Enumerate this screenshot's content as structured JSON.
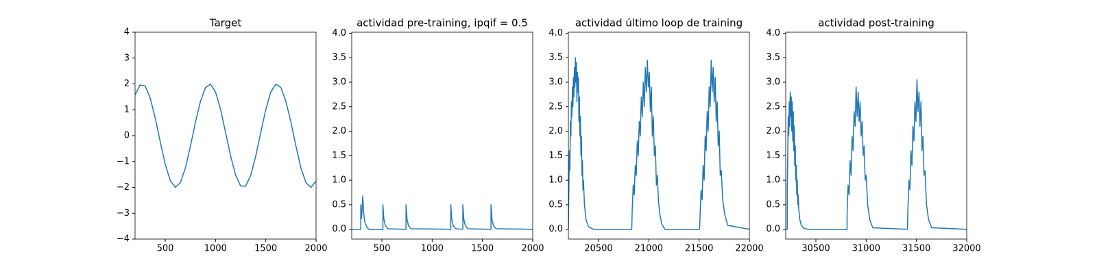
{
  "chart_data": [
    {
      "type": "line",
      "title": "Target",
      "color": "#1f77b4",
      "x": [
        200,
        250,
        300,
        350,
        400,
        450,
        500,
        550,
        600,
        650,
        700,
        750,
        800,
        850,
        900,
        950,
        1000,
        1050,
        1100,
        1150,
        1200,
        1250,
        1300,
        1350,
        1400,
        1450,
        1500,
        1550,
        1600,
        1650,
        1700,
        1750,
        1800,
        1850,
        1900,
        1950,
        2000
      ],
      "values": [
        1.58,
        1.96,
        1.92,
        1.46,
        0.69,
        -0.23,
        -1.11,
        -1.74,
        -2.0,
        -1.82,
        -1.26,
        -0.42,
        0.51,
        1.32,
        1.86,
        1.99,
        1.69,
        1.02,
        0.12,
        -0.78,
        -1.53,
        -1.95,
        -1.95,
        -1.54,
        -0.79,
        0.12,
        1.01,
        1.69,
        1.99,
        1.86,
        1.32,
        0.52,
        -0.41,
        -1.26,
        -1.82,
        -2.0,
        -1.75
      ],
      "xlim": [
        200,
        2000
      ],
      "xticks": [
        500,
        1000,
        1500,
        2000
      ],
      "ylim": [
        -4,
        4
      ],
      "yticks": [
        {
          "value": -4,
          "label": "−4"
        },
        {
          "value": -3,
          "label": "−3"
        },
        {
          "value": -2,
          "label": "−2"
        },
        {
          "value": -1,
          "label": "−1"
        },
        0,
        1,
        2,
        3,
        4
      ]
    },
    {
      "type": "line",
      "title": "actividad pre-training, ipqif = 0.5",
      "color": "#1f77b4",
      "x": [
        200,
        290,
        290,
        298,
        310,
        318,
        330,
        350,
        370,
        510,
        510,
        520,
        535,
        560,
        740,
        740,
        750,
        765,
        790,
        1185,
        1185,
        1195,
        1210,
        1235,
        1305,
        1305,
        1315,
        1330,
        1355,
        1585,
        1585,
        1595,
        1610,
        1635,
        2000
      ],
      "values": [
        0,
        0,
        0.5,
        0.22,
        0.68,
        0.35,
        0.15,
        0.04,
        0,
        0,
        0.5,
        0.2,
        0.07,
        0.01,
        0,
        0.5,
        0.2,
        0.07,
        0.01,
        0,
        0.5,
        0.2,
        0.07,
        0.01,
        0,
        0.5,
        0.2,
        0.07,
        0.01,
        0,
        0.5,
        0.2,
        0.07,
        0.01,
        0
      ],
      "xlim": [
        200,
        2000
      ],
      "xticks": [
        500,
        1000,
        1500,
        2000
      ],
      "ylim": [
        -0.2,
        4.02
      ],
      "yticks": [
        {
          "value": 0,
          "label": "0.0"
        },
        {
          "value": 0.5,
          "label": "0.5"
        },
        {
          "value": 1,
          "label": "1.0"
        },
        {
          "value": 1.5,
          "label": "1.5"
        },
        {
          "value": 2,
          "label": "2.0"
        },
        {
          "value": 2.5,
          "label": "2.5"
        },
        {
          "value": 3,
          "label": "3.0"
        },
        {
          "value": 3.5,
          "label": "3.5"
        },
        {
          "value": 4,
          "label": "4.0"
        }
      ]
    },
    {
      "type": "line",
      "title": "actividad último loop de training",
      "color": "#1f77b4",
      "x": [
        20200,
        20205,
        20210,
        20215,
        20220,
        20225,
        20230,
        20235,
        20240,
        20245,
        20250,
        20255,
        20260,
        20265,
        20270,
        20275,
        20280,
        20285,
        20290,
        20295,
        20300,
        20305,
        20310,
        20315,
        20320,
        20325,
        20330,
        20335,
        20340,
        20345,
        20350,
        20360,
        20375,
        20400,
        20450,
        20830,
        20835,
        20845,
        20855,
        20865,
        20875,
        20885,
        20895,
        20905,
        20915,
        20925,
        20935,
        20945,
        20955,
        20965,
        20975,
        20985,
        20995,
        21005,
        21015,
        21025,
        21035,
        21045,
        21055,
        21065,
        21075,
        21085,
        21095,
        21110,
        21130,
        21160,
        21505,
        21510,
        21520,
        21530,
        21540,
        21550,
        21560,
        21570,
        21580,
        21590,
        21600,
        21610,
        21620,
        21630,
        21640,
        21650,
        21660,
        21670,
        21680,
        21690,
        21700,
        21710,
        21720,
        21735,
        21755,
        21785,
        22000
      ],
      "values": [
        0,
        0.8,
        1.6,
        1.2,
        2.2,
        1.9,
        2.6,
        2.3,
        2.9,
        2.5,
        3.1,
        2.7,
        3.3,
        2.9,
        3.5,
        3.0,
        3.4,
        2.6,
        3.2,
        2.8,
        3.1,
        2.2,
        2.7,
        1.9,
        2.3,
        1.5,
        1.9,
        1.1,
        1.4,
        0.8,
        1.0,
        0.5,
        0.2,
        0.05,
        0,
        0,
        0.4,
        0.9,
        0.7,
        1.3,
        1.1,
        1.8,
        1.5,
        2.2,
        1.9,
        2.7,
        2.3,
        3.0,
        2.5,
        3.3,
        2.8,
        3.45,
        2.9,
        3.2,
        2.4,
        2.9,
        1.9,
        2.3,
        1.5,
        1.7,
        0.9,
        1.1,
        0.6,
        0.3,
        0.1,
        0,
        0,
        0.3,
        0.8,
        0.6,
        1.3,
        1.0,
        1.9,
        1.6,
        2.4,
        2.0,
        2.9,
        2.5,
        3.45,
        2.8,
        3.3,
        2.6,
        3.1,
        2.2,
        2.6,
        1.7,
        2.0,
        1.1,
        1.2,
        0.6,
        0.3,
        0.08,
        0
      ],
      "xlim": [
        20200,
        22000
      ],
      "xticks": [
        20500,
        21000,
        21500,
        22000
      ],
      "ylim": [
        -0.2,
        4.02
      ],
      "yticks": [
        {
          "value": 0,
          "label": "0.0"
        },
        {
          "value": 0.5,
          "label": "0.5"
        },
        {
          "value": 1,
          "label": "1.0"
        },
        {
          "value": 1.5,
          "label": "1.5"
        },
        {
          "value": 2,
          "label": "2.0"
        },
        {
          "value": 2.5,
          "label": "2.5"
        },
        {
          "value": 3,
          "label": "3.0"
        },
        {
          "value": 3.5,
          "label": "3.5"
        },
        {
          "value": 4,
          "label": "4.0"
        }
      ]
    },
    {
      "type": "line",
      "title": "actividad post-training",
      "color": "#1f77b4",
      "x": [
        30200,
        30215,
        30215,
        30220,
        30225,
        30230,
        30235,
        30240,
        30245,
        30250,
        30255,
        30260,
        30265,
        30270,
        30275,
        30280,
        30285,
        30290,
        30295,
        30300,
        30305,
        30310,
        30315,
        30320,
        30325,
        30330,
        30340,
        30355,
        30380,
        30420,
        30810,
        30810,
        30820,
        30830,
        30840,
        30850,
        30860,
        30870,
        30880,
        30890,
        30900,
        30910,
        30920,
        30930,
        30940,
        30950,
        30960,
        30970,
        30980,
        30990,
        31000,
        31015,
        31035,
        31065,
        31410,
        31415,
        31425,
        31435,
        31445,
        31455,
        31465,
        31475,
        31485,
        31495,
        31505,
        31515,
        31525,
        31535,
        31545,
        31555,
        31565,
        31575,
        31585,
        31600,
        31620,
        31650,
        32000
      ],
      "values": [
        0,
        0,
        0.8,
        1.5,
        2.3,
        1.9,
        2.6,
        2.1,
        2.8,
        2.3,
        2.7,
        2.0,
        2.6,
        1.8,
        2.4,
        1.6,
        2.1,
        1.3,
        1.7,
        1.0,
        1.3,
        0.7,
        1.0,
        0.5,
        0.7,
        0.4,
        0.2,
        0.08,
        0.02,
        0,
        0,
        0.3,
        0.9,
        0.7,
        1.4,
        1.1,
        1.9,
        1.6,
        2.4,
        2.1,
        2.9,
        2.3,
        2.8,
        2.2,
        2.6,
        1.9,
        2.2,
        1.5,
        1.7,
        1.0,
        1.1,
        0.5,
        0.2,
        0.03,
        0,
        0.4,
        1.0,
        0.8,
        1.6,
        1.3,
        2.1,
        1.8,
        2.6,
        2.2,
        3.05,
        2.4,
        2.8,
        2.1,
        2.6,
        1.6,
        1.9,
        1.1,
        1.2,
        0.5,
        0.2,
        0.03,
        0
      ],
      "xlim": [
        30200,
        32000
      ],
      "xticks": [
        30500,
        31000,
        31500,
        32000
      ],
      "ylim": [
        -0.2,
        4.02
      ],
      "yticks": [
        {
          "value": 0,
          "label": "0.0"
        },
        {
          "value": 0.5,
          "label": "0.5"
        },
        {
          "value": 1,
          "label": "1.0"
        },
        {
          "value": 1.5,
          "label": "1.5"
        },
        {
          "value": 2,
          "label": "2.0"
        },
        {
          "value": 2.5,
          "label": "2.5"
        },
        {
          "value": 3,
          "label": "3.0"
        },
        {
          "value": 3.5,
          "label": "3.5"
        },
        {
          "value": 4,
          "label": "4.0"
        }
      ]
    }
  ]
}
